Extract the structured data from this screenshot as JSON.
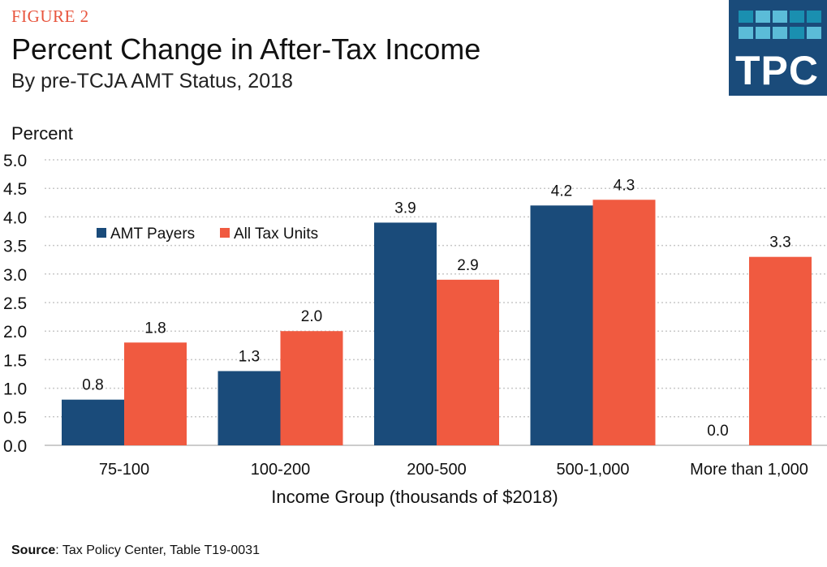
{
  "header": {
    "figure_label": "FIGURE 2",
    "title": "Percent Change in After-Tax Income",
    "subtitle": "By pre-TCJA AMT Status, 2018"
  },
  "logo": {
    "text": "TPC",
    "colors": [
      "#1a4b7a",
      "#1a8fb0",
      "#5bbcd8"
    ]
  },
  "source": {
    "label": "Source",
    "text": ": Tax Policy Center, Table T19-0031"
  },
  "chart_data": {
    "type": "bar",
    "title": "Percent Change in After-Tax Income",
    "ylabel": "Percent",
    "xlabel": "Income Group (thousands of $2018)",
    "ylim": [
      0,
      5
    ],
    "yticks": [
      "0.0",
      "0.5",
      "1.0",
      "1.5",
      "2.0",
      "2.5",
      "3.0",
      "3.5",
      "4.0",
      "4.5",
      "5.0"
    ],
    "grid": true,
    "legend": "top-left",
    "categories": [
      "75-100",
      "100-200",
      "200-500",
      "500-1,000",
      "More than 1,000"
    ],
    "series": [
      {
        "name": "AMT Payers",
        "color": "#1a4b7a",
        "values": [
          0.8,
          1.3,
          3.9,
          4.2,
          0.0
        ],
        "labels": [
          "0.8",
          "1.3",
          "3.9",
          "4.2",
          "0.0"
        ]
      },
      {
        "name": "All Tax Units",
        "color": "#f05a40",
        "values": [
          1.8,
          2.0,
          2.9,
          4.3,
          3.3
        ],
        "labels": [
          "1.8",
          "2.0",
          "2.9",
          "4.3",
          "3.3"
        ]
      }
    ]
  }
}
